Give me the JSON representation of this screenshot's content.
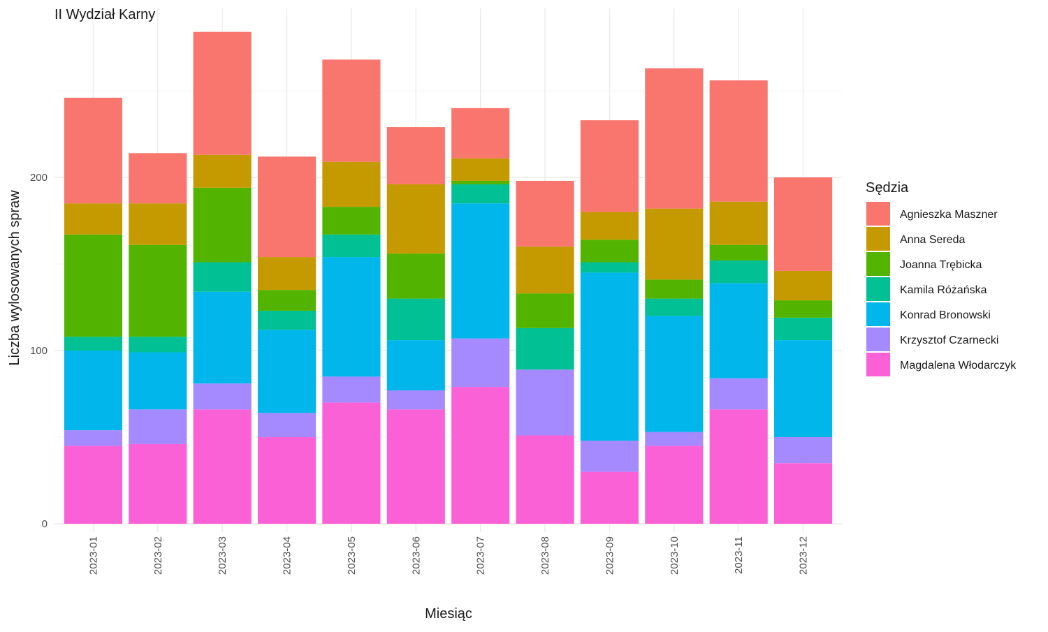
{
  "chart_data": {
    "type": "bar",
    "stacked": true,
    "title": "II Wydział Karny",
    "xlabel": "Miesiąc",
    "ylabel": "Liczba wylosowanych spraw",
    "ylim": [
      0,
      290
    ],
    "yticks": [
      0,
      100,
      200
    ],
    "grid": true,
    "legend_title": "Sędzia",
    "legend_position": "right",
    "categories": [
      "2023-01",
      "2023-02",
      "2023-03",
      "2023-04",
      "2023-05",
      "2023-06",
      "2023-07",
      "2023-08",
      "2023-09",
      "2023-10",
      "2023-11",
      "2023-12"
    ],
    "series": [
      {
        "name": "Magdalena Włodarczyk",
        "color": "#FB61D7",
        "values": [
          45,
          46,
          66,
          50,
          70,
          66,
          79,
          51,
          30,
          45,
          66,
          35
        ]
      },
      {
        "name": "Krzysztof Czarnecki",
        "color": "#A58AFF",
        "values": [
          9,
          20,
          15,
          14,
          15,
          11,
          28,
          38,
          18,
          8,
          18,
          15
        ]
      },
      {
        "name": "Konrad Bronowski",
        "color": "#00B6EB",
        "values": [
          46,
          33,
          53,
          48,
          69,
          29,
          78,
          0,
          97,
          67,
          55,
          56
        ]
      },
      {
        "name": "Kamila Różańska",
        "color": "#00C094",
        "values": [
          8,
          9,
          17,
          11,
          13,
          24,
          11,
          24,
          6,
          10,
          13,
          13
        ]
      },
      {
        "name": "Joanna Trębicka",
        "color": "#53B400",
        "values": [
          59,
          53,
          43,
          12,
          16,
          26,
          2,
          20,
          13,
          11,
          9,
          10
        ]
      },
      {
        "name": "Anna Sereda",
        "color": "#C49A00",
        "values": [
          18,
          24,
          19,
          19,
          26,
          40,
          13,
          27,
          16,
          41,
          25,
          17
        ]
      },
      {
        "name": "Agnieszka Maszner",
        "color": "#F8766D",
        "values": [
          61,
          29,
          71,
          58,
          59,
          33,
          29,
          38,
          53,
          81,
          70,
          54
        ]
      }
    ],
    "legend_order": [
      "Agnieszka Maszner",
      "Anna Sereda",
      "Joanna Trębicka",
      "Kamila Różańska",
      "Konrad Bronowski",
      "Krzysztof Czarnecki",
      "Magdalena Włodarczyk"
    ]
  }
}
